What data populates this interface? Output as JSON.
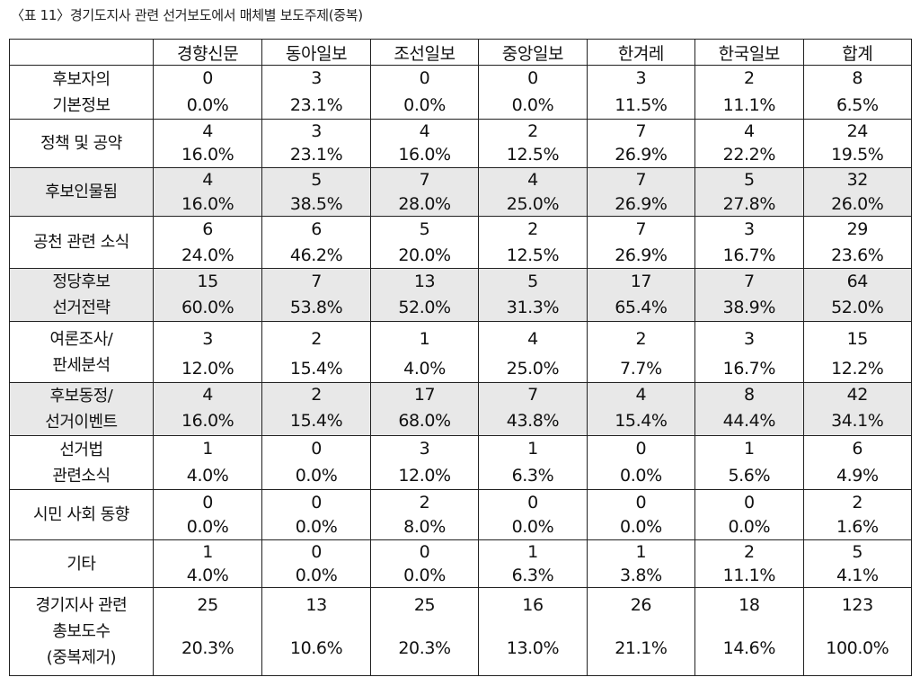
{
  "caption": "〈표 11〉경기도지사 관련 선거보도에서 매체별 보도주제(중복)",
  "columns": [
    "경향신문",
    "동아일보",
    "조선일보",
    "중앙일보",
    "한겨레",
    "한국일보",
    "합계"
  ],
  "rows": [
    {
      "label": [
        "후보자의",
        "기본정보"
      ],
      "shaded": false,
      "counts": [
        "0",
        "3",
        "0",
        "0",
        "3",
        "2",
        "8"
      ],
      "percents": [
        "0.0%",
        "23.1%",
        "0.0%",
        "0.0%",
        "11.5%",
        "11.1%",
        "6.5%"
      ]
    },
    {
      "label": [
        "정책 및 공약"
      ],
      "shaded": false,
      "counts": [
        "4",
        "3",
        "4",
        "2",
        "7",
        "4",
        "24"
      ],
      "percents": [
        "16.0%",
        "23.1%",
        "16.0%",
        "12.5%",
        "26.9%",
        "22.2%",
        "19.5%"
      ]
    },
    {
      "label": [
        "후보인물됨"
      ],
      "shaded": true,
      "counts": [
        "4",
        "5",
        "7",
        "4",
        "7",
        "5",
        "32"
      ],
      "percents": [
        "16.0%",
        "38.5%",
        "28.0%",
        "25.0%",
        "26.9%",
        "27.8%",
        "26.0%"
      ]
    },
    {
      "label": [
        "공천 관련 소식"
      ],
      "shaded": false,
      "counts": [
        "6",
        "6",
        "5",
        "2",
        "7",
        "3",
        "29"
      ],
      "percents": [
        "24.0%",
        "46.2%",
        "20.0%",
        "12.5%",
        "26.9%",
        "16.7%",
        "23.6%"
      ]
    },
    {
      "label": [
        "정당후보",
        "선거전략"
      ],
      "shaded": true,
      "counts": [
        "15",
        "7",
        "13",
        "5",
        "17",
        "7",
        "64"
      ],
      "percents": [
        "60.0%",
        "53.8%",
        "52.0%",
        "31.3%",
        "65.4%",
        "38.9%",
        "52.0%"
      ]
    },
    {
      "label": [
        "여론조사/",
        "판세분석"
      ],
      "shaded": false,
      "counts": [
        "3",
        "2",
        "1",
        "4",
        "2",
        "3",
        "15"
      ],
      "percents": [
        "12.0%",
        "15.4%",
        "4.0%",
        "25.0%",
        "7.7%",
        "16.7%",
        "12.2%"
      ]
    },
    {
      "label": [
        "후보동정/",
        "선거이벤트"
      ],
      "shaded": true,
      "counts": [
        "4",
        "2",
        "17",
        "7",
        "4",
        "8",
        "42"
      ],
      "percents": [
        "16.0%",
        "15.4%",
        "68.0%",
        "43.8%",
        "15.4%",
        "44.4%",
        "34.1%"
      ]
    },
    {
      "label": [
        "선거법",
        "관련소식"
      ],
      "shaded": false,
      "counts": [
        "1",
        "0",
        "3",
        "1",
        "0",
        "1",
        "6"
      ],
      "percents": [
        "4.0%",
        "0.0%",
        "12.0%",
        "6.3%",
        "0.0%",
        "5.6%",
        "4.9%"
      ]
    },
    {
      "label": [
        "시민 사회 동향"
      ],
      "shaded": false,
      "counts": [
        "0",
        "0",
        "2",
        "0",
        "0",
        "0",
        "2"
      ],
      "percents": [
        "0.0%",
        "0.0%",
        "8.0%",
        "0.0%",
        "0.0%",
        "0.0%",
        "1.6%"
      ]
    },
    {
      "label": [
        "기타"
      ],
      "shaded": false,
      "counts": [
        "1",
        "0",
        "0",
        "1",
        "1",
        "2",
        "5"
      ],
      "percents": [
        "4.0%",
        "0.0%",
        "0.0%",
        "6.3%",
        "3.8%",
        "11.1%",
        "4.1%"
      ]
    },
    {
      "label": [
        "경기지사 관련",
        "총보도수",
        "(중복제거)"
      ],
      "shaded": false,
      "counts": [
        "25",
        "13",
        "25",
        "16",
        "26",
        "18",
        "123"
      ],
      "percents": [
        "20.3%",
        "10.6%",
        "20.3%",
        "13.0%",
        "21.1%",
        "14.6%",
        "100.0%"
      ]
    }
  ],
  "colors": {
    "shade": "#e8e8e8",
    "border": "#222222"
  }
}
